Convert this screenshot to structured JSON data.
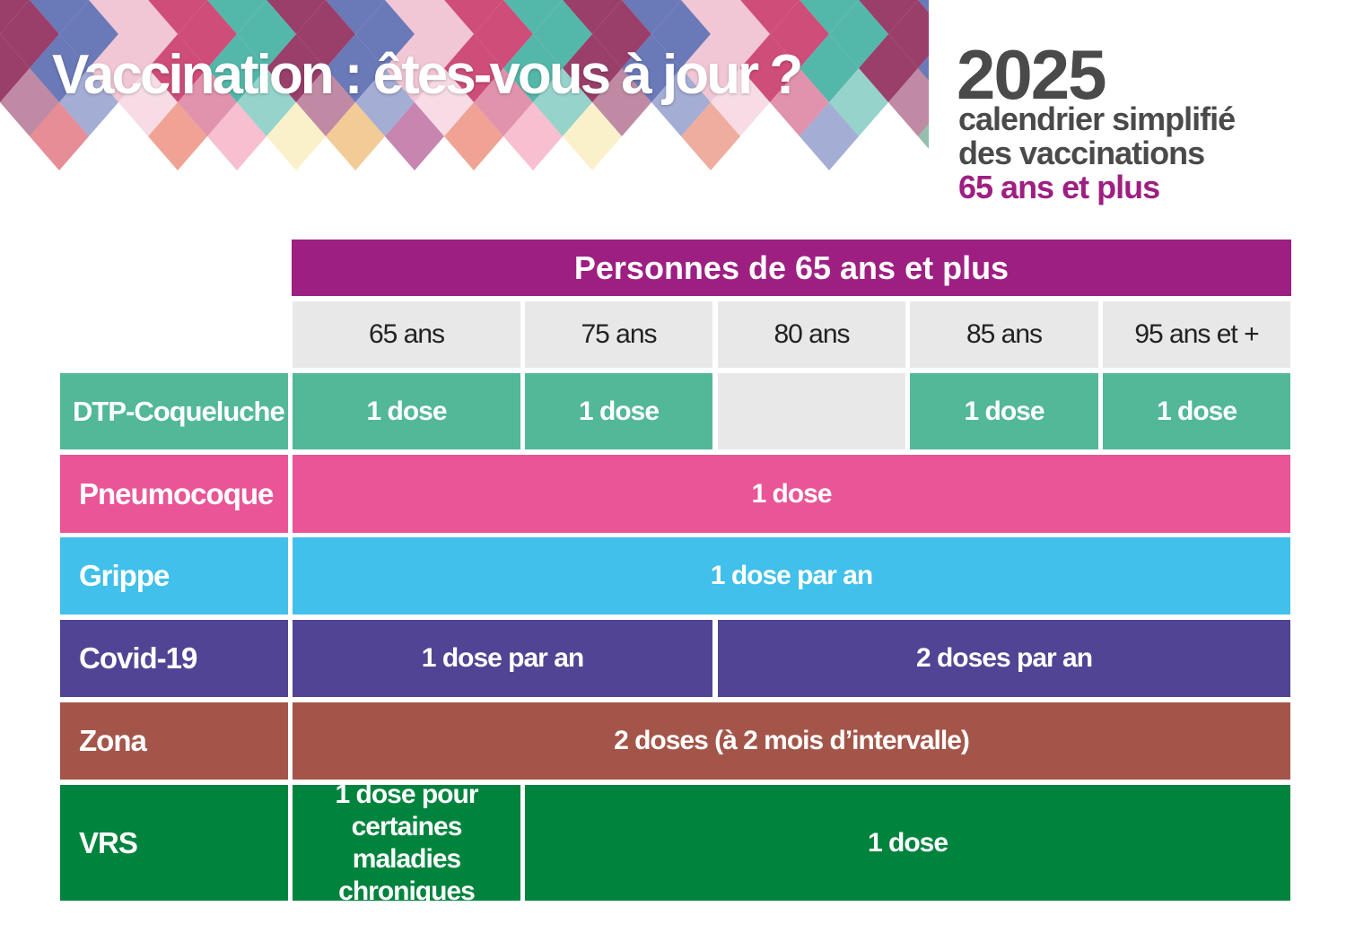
{
  "header": {
    "title": "Vaccination : êtes-vous à jour ?",
    "year": "2025",
    "subtitle_line1": "calendrier simplifié",
    "subtitle_line2": "des vaccinations",
    "subtitle_line3": "65 ans et plus"
  },
  "table": {
    "group_header": "Personnes de 65 ans et plus",
    "ages": [
      "65 ans",
      "75 ans",
      "80 ans",
      "85 ans",
      "95 ans et +"
    ],
    "rows": [
      {
        "label": "DTP-Coqueluche",
        "color": "#52b898",
        "cells": [
          "1 dose",
          "1 dose",
          "",
          "1 dose",
          "1 dose"
        ]
      },
      {
        "label": "Pneumocoque",
        "color": "#e95596",
        "cells": [
          "1 dose"
        ]
      },
      {
        "label": "Grippe",
        "color": "#40c0ea",
        "cells": [
          "1 dose par an"
        ]
      },
      {
        "label": "Covid-19",
        "color": "#514494",
        "cells": [
          "1 dose par an",
          "2 doses par an"
        ]
      },
      {
        "label": "Zona",
        "color": "#a4554a",
        "cells": [
          "2 doses (à 2 mois d’intervalle)"
        ]
      },
      {
        "label": "VRS",
        "color": "#00843d",
        "cells": [
          "1 dose pour certaines maladies chroniques",
          "1 dose"
        ]
      }
    ]
  },
  "colors": {
    "header_purple": "#9e1f82",
    "age_grey": "#e8e8e8",
    "empty_cell": "#e8e8e8",
    "subtitle_accent": "#9e1f82",
    "text_dark": "#4a4a4a"
  }
}
